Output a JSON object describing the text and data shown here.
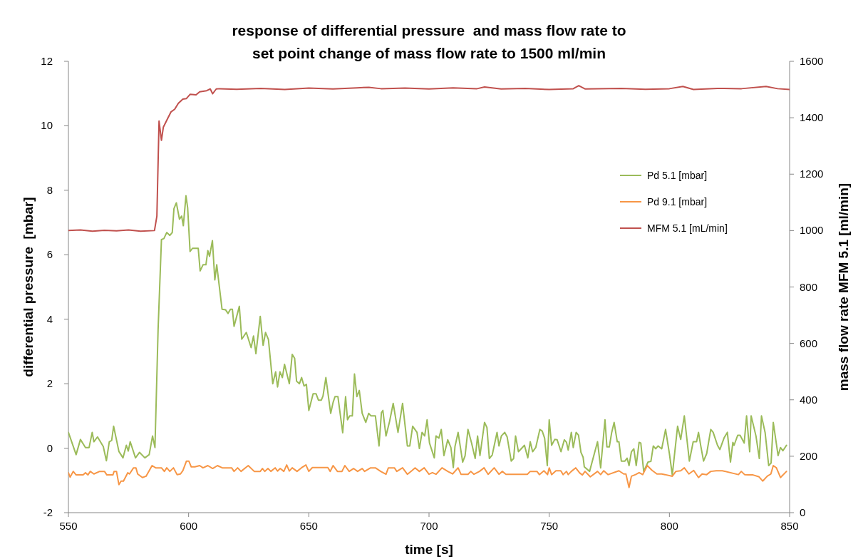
{
  "chart_data": {
    "type": "line",
    "title": "response of differential pressure  and mass flow rate to\nset point change of mass flow rate to 1500 ml/min",
    "xlabel": "time [s]",
    "ylabel": "differential pressure  [mbar]",
    "y2label": "mass flow rate MFM 5.1 [ml/min]",
    "xlim": [
      550,
      850
    ],
    "xticks": [
      550,
      600,
      650,
      700,
      750,
      800,
      850
    ],
    "ylim": [
      -2,
      12
    ],
    "yticks": [
      -2,
      0,
      2,
      4,
      6,
      8,
      10,
      12
    ],
    "y2lim": [
      0,
      1600
    ],
    "y2ticks": [
      0,
      200,
      400,
      600,
      800,
      1000,
      1200,
      1400,
      1600
    ],
    "legend": "right",
    "grid": false,
    "series": [
      {
        "name": "Pd 5.1 [mbar]",
        "color": "#9bbb59",
        "x": [
          550,
          553.2,
          555,
          557.1,
          558.6,
          559.9,
          560.6,
          562.1,
          564.5,
          565.8,
          567,
          568,
          568.8,
          571,
          572.7,
          574.1,
          574.9,
          575.7,
          577.9,
          579.6,
          581.8,
          583.6,
          585,
          586,
          587.3,
          588.7,
          589.7,
          590.9,
          592.2,
          593.2,
          593.9,
          594.9,
          596.2,
          597.1,
          597.8,
          598.9,
          599.6,
          600.6,
          601.6,
          604,
          604.8,
          606,
          607.2,
          608,
          608.7,
          609.9,
          610.9,
          611.7,
          613.9,
          615.4,
          616.4,
          617.4,
          618.2,
          618.9,
          621.1,
          622.1,
          624,
          626,
          627,
          628,
          629.8,
          631,
          632,
          633.2,
          635,
          636.2,
          637,
          638,
          639,
          639.9,
          641.9,
          643.1,
          644.1,
          644.9,
          646.1,
          647,
          648,
          649,
          650,
          651.8,
          653,
          654,
          655.2,
          655.9,
          657.1,
          659.1,
          660.1,
          660.9,
          662.1,
          664.1,
          665.3,
          666.1,
          667,
          668.1,
          669,
          670,
          671,
          672.2,
          673.7,
          674.9,
          675.9,
          677.7,
          679.2,
          680.2,
          680.8,
          682.1,
          683.6,
          685.1,
          687.1,
          689,
          691,
          692,
          693.2,
          695,
          696,
          697.1,
          698.2,
          699.2,
          700.2,
          702.2,
          702.9,
          704.1,
          705.1,
          706.2,
          707.8,
          709.1,
          710.1,
          710.8,
          712.1,
          714,
          715,
          716.2,
          717.7,
          719.2,
          720.2,
          721.2,
          723.1,
          724.1,
          725.1,
          726.3,
          728.3,
          729.1,
          730.1,
          731.5,
          732.5,
          734.2,
          735.2,
          736,
          737.2,
          739.7,
          741.1,
          742.1,
          743.1,
          744.4,
          746.1,
          747.1,
          748.1,
          749.2,
          750,
          751,
          752.3,
          753.3,
          754.9,
          756.3,
          757.2,
          757.9,
          759.2,
          760,
          761.2,
          762.2,
          763.2,
          764.1,
          764.6,
          766.8,
          770.1,
          771.4,
          773.2,
          774,
          775,
          776,
          777,
          778.3,
          779,
          780,
          781.5,
          782.4,
          783.2,
          784.2,
          785.2,
          786.2,
          787.4,
          788.1,
          789.3,
          791.1,
          792.3,
          793.3,
          794.3,
          795.3,
          796.8,
          798.4,
          800,
          801.2,
          803.4,
          804.7,
          806.2,
          808.3,
          809.9,
          811.3,
          812.1,
          813.1,
          814.2,
          815.5,
          817.2,
          818.2,
          820,
          821,
          822.8,
          824.1,
          825.4,
          826.4,
          826.9,
          828.4,
          829.4,
          831.1,
          832.1,
          833.4,
          834,
          836,
          837.4,
          838.3,
          839.8,
          841.3,
          842.3,
          843.2,
          845.2,
          846.2,
          847.2,
          848.7
        ],
        "values": [
          0.49,
          -0.2,
          0.27,
          0.02,
          0.02,
          0.49,
          0.2,
          0.35,
          0.05,
          -0.39,
          0.2,
          0.24,
          0.68,
          -0.1,
          -0.3,
          0.09,
          -0.09,
          0.2,
          -0.3,
          -0.13,
          -0.3,
          -0.2,
          0.38,
          0.02,
          3.67,
          6.47,
          6.5,
          6.69,
          6.6,
          6.69,
          7.43,
          7.61,
          7.1,
          7.2,
          6.9,
          7.83,
          7.46,
          6.1,
          6.2,
          6.2,
          5.5,
          5.69,
          5.69,
          6.13,
          5.95,
          6.44,
          5.22,
          5.69,
          4.31,
          4.29,
          4.18,
          4.31,
          4.31,
          3.78,
          4.4,
          3.38,
          3.59,
          3.12,
          3.48,
          2.93,
          4.09,
          3.19,
          3.59,
          3.37,
          2.0,
          2.37,
          1.9,
          2.37,
          2.19,
          2.6,
          2.0,
          2.91,
          2.79,
          2.08,
          2.0,
          2.19,
          1.93,
          1.98,
          1.17,
          1.69,
          1.69,
          1.49,
          1.49,
          1.62,
          2.19,
          1.08,
          1.42,
          1.6,
          1.6,
          0.48,
          1.6,
          0.88,
          1.0,
          1.0,
          2.3,
          1.6,
          1.79,
          1.08,
          0.8,
          1.08,
          1.0,
          1.0,
          0.07,
          1.1,
          1.17,
          0.38,
          0.83,
          1.39,
          0.49,
          1.39,
          0.07,
          0.07,
          0.68,
          0.49,
          -0.01,
          0.49,
          0.38,
          0.88,
          0.16,
          -0.3,
          0.38,
          0.31,
          0.58,
          -0.23,
          0.26,
          0.02,
          -0.6,
          0.05,
          0.49,
          -0.43,
          -0.24,
          0.58,
          0.16,
          -0.32,
          0.38,
          -0.23,
          0.8,
          0.64,
          -0.32,
          -0.21,
          0.49,
          0.07,
          0.38,
          0.49,
          0.35,
          -0.4,
          -0.32,
          0.38,
          -0.11,
          0.09,
          -0.3,
          0.2,
          -0.11,
          0.02,
          0.58,
          0.53,
          0.31,
          -0.54,
          0.88,
          0.09,
          0.27,
          0.26,
          -0.11,
          0.26,
          0.18,
          -0.06,
          0.49,
          0.02,
          0.49,
          0.4,
          -0.13,
          -0.28,
          -0.58,
          -0.72,
          0.2,
          -0.61,
          0.88,
          0.04,
          0.04,
          0.49,
          0.8,
          0.2,
          0.2,
          -0.4,
          -0.4,
          -0.31,
          -0.54,
          -0.11,
          -0.02,
          -0.54,
          0.18,
          0.16,
          -0.72,
          -0.43,
          -0.41,
          0.07,
          -0.02,
          0.07,
          -0.02,
          0.58,
          -0.17,
          -0.83,
          0.68,
          0.27,
          1.0,
          -0.4,
          0.2,
          0.2,
          0.49,
          0.05,
          -0.4,
          -0.17,
          0.58,
          0.49,
          0.09,
          -0.04,
          0.33,
          0.49,
          -0.43,
          0.18,
          0.09,
          0.4,
          0.4,
          0.16,
          1.0,
          -0.11,
          1.0,
          0.38,
          -0.32,
          1.0,
          0.49,
          -0.54,
          -0.46,
          0.8,
          -0.23,
          0.02,
          -0.08,
          0.09
        ]
      },
      {
        "name": "Pd 9.1 [mbar]",
        "color": "#f79646",
        "x": [
          550,
          550.7,
          552,
          553.2,
          556.1,
          557.1,
          558.1,
          559.1,
          560.6,
          563,
          565,
          566,
          568.5,
          569,
          570,
          571,
          571.9,
          572.9,
          574.7,
          575.4,
          577.1,
          578.1,
          578.8,
          580.8,
          582.3,
          584.8,
          586.3,
          588.7,
          589.9,
          590.9,
          592.2,
          593.7,
          595.2,
          596.6,
          597.6,
          599.1,
          600.1,
          601.1,
          602.6,
          604.6,
          606,
          608,
          610,
          612,
          614,
          617.9,
          618.9,
          620.4,
          621.8,
          624.8,
          627.3,
          629.8,
          630.7,
          631.7,
          633,
          634.2,
          636,
          637,
          638.1,
          639.6,
          640.8,
          641.9,
          643.1,
          645.1,
          646.9,
          648.8,
          650,
          651.5,
          657.9,
          658.9,
          660.1,
          661.9,
          663.8,
          665,
          666.8,
          668.6,
          670.3,
          672.2,
          673.2,
          675.7,
          677.7,
          679.9,
          682.1,
          683.1,
          685.6,
          686.6,
          689,
          691,
          693,
          694.2,
          696,
          698,
          700,
          701.4,
          702.9,
          705.4,
          707.8,
          709.8,
          712.1,
          713.3,
          716.2,
          717.4,
          718.7,
          721,
          722.9,
          724.6,
          727.1,
          729.1,
          730.5,
          732,
          740.9,
          742.1,
          744.9,
          745.9,
          747.8,
          749.3,
          750,
          751,
          752.8,
          754.8,
          755.8,
          757.2,
          757.9,
          759.2,
          761,
          762.7,
          763.8,
          764.9,
          767.1,
          770.1,
          771.4,
          772.7,
          774.5,
          779,
          781,
          781.9,
          783.2,
          784.2,
          785.9,
          787.4,
          788.9,
          790.8,
          792.8,
          794.8,
          796.8,
          798.2,
          801.2,
          802.7,
          804.7,
          806.2,
          808.1,
          810.1,
          812.1,
          813.6,
          815.5,
          817.2,
          819.5,
          822,
          828.7,
          829.9,
          831.3,
          832.8,
          834.8,
          837.3,
          838.8,
          840.7,
          842.2,
          843.2,
          844.5,
          846.2,
          848.7
        ],
        "values": [
          -0.76,
          -0.9,
          -0.72,
          -0.83,
          -0.83,
          -0.76,
          -0.83,
          -0.72,
          -0.8,
          -0.72,
          -0.72,
          -0.83,
          -0.83,
          -0.72,
          -0.72,
          -1.13,
          -1.02,
          -1.02,
          -0.76,
          -0.8,
          -0.61,
          -0.61,
          -0.8,
          -0.91,
          -0.87,
          -0.54,
          -0.61,
          -0.61,
          -0.72,
          -0.61,
          -0.72,
          -0.61,
          -0.82,
          -0.8,
          -0.7,
          -0.4,
          -0.4,
          -0.58,
          -0.58,
          -0.54,
          -0.61,
          -0.54,
          -0.63,
          -0.54,
          -0.61,
          -0.61,
          -0.72,
          -0.61,
          -0.72,
          -0.54,
          -0.72,
          -0.72,
          -0.63,
          -0.72,
          -0.63,
          -0.72,
          -0.61,
          -0.71,
          -0.63,
          -0.72,
          -0.52,
          -0.71,
          -0.61,
          -0.72,
          -0.61,
          -0.52,
          -0.72,
          -0.6,
          -0.6,
          -0.72,
          -0.54,
          -0.72,
          -0.72,
          -0.54,
          -0.72,
          -0.63,
          -0.72,
          -0.63,
          -0.72,
          -0.61,
          -0.61,
          -0.72,
          -0.81,
          -0.61,
          -0.61,
          -0.72,
          -0.61,
          -0.81,
          -0.69,
          -0.61,
          -0.72,
          -0.61,
          -0.81,
          -0.76,
          -0.81,
          -0.61,
          -0.72,
          -0.8,
          -0.61,
          -0.81,
          -0.81,
          -0.72,
          -0.81,
          -0.72,
          -0.61,
          -0.81,
          -0.61,
          -0.81,
          -0.72,
          -0.81,
          -0.81,
          -0.72,
          -0.72,
          -0.82,
          -0.7,
          -0.82,
          -0.61,
          -0.82,
          -0.7,
          -0.7,
          -0.82,
          -0.72,
          -0.82,
          -0.72,
          -0.61,
          -0.77,
          -0.83,
          -0.72,
          -0.89,
          -0.72,
          -0.82,
          -0.7,
          -0.82,
          -0.7,
          -0.8,
          -0.8,
          -1.22,
          -0.87,
          -0.82,
          -0.76,
          -0.82,
          -0.54,
          -0.69,
          -0.8,
          -0.8,
          -0.82,
          -0.87,
          -0.72,
          -0.7,
          -0.61,
          -0.8,
          -0.69,
          -0.91,
          -0.8,
          -0.82,
          -0.72,
          -0.7,
          -0.7,
          -0.82,
          -0.72,
          -0.82,
          -0.83,
          -0.83,
          -0.89,
          -1.02,
          -0.87,
          -0.8,
          -0.54,
          -0.61,
          -0.91,
          -0.72
        ]
      },
      {
        "name": "MFM 5.1 [mL/min]",
        "color": "#c0504d",
        "axis": "y2",
        "x": [
          550,
          555,
          560,
          565,
          570,
          575,
          580,
          585.8,
          586.8,
          587.7,
          588.7,
          589.5,
          591.2,
          592.7,
          594.2,
          595.7,
          597.6,
          599.1,
          600.6,
          603.1,
          604.6,
          607.5,
          609,
          610,
          611.5,
          612.9,
          620,
          630,
          640,
          650,
          660,
          670,
          675,
          680,
          690,
          700,
          710,
          720,
          723.1,
          730,
          740,
          750,
          760,
          762.3,
          765,
          780,
          790,
          800,
          805.6,
          810,
          820,
          830,
          840.2,
          845,
          850
        ],
        "values": [
          1000,
          1002,
          998,
          1001,
          999,
          1002,
          998,
          1000,
          1051,
          1388,
          1320,
          1367,
          1396,
          1421,
          1430,
          1451,
          1466,
          1468,
          1483,
          1481,
          1492,
          1496,
          1502,
          1485,
          1502,
          1503,
          1501,
          1504,
          1500,
          1505,
          1502,
          1506,
          1508,
          1503,
          1505,
          1502,
          1506,
          1503,
          1509,
          1502,
          1504,
          1500,
          1503,
          1514,
          1502,
          1504,
          1501,
          1503,
          1511,
          1500,
          1504,
          1503,
          1511,
          1503,
          1500
        ]
      }
    ]
  }
}
